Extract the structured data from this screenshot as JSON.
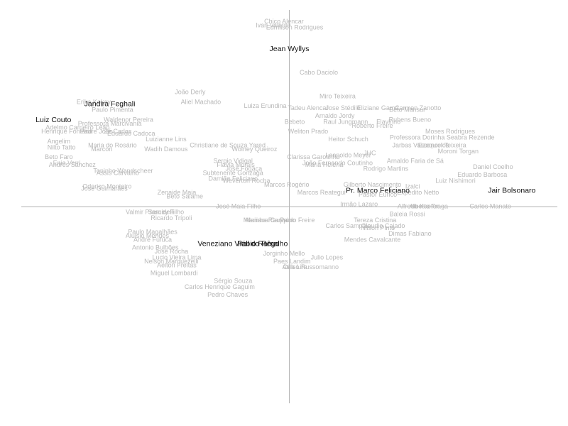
{
  "chart_data": {
    "type": "scatter",
    "title": "",
    "xlabel": "",
    "ylabel": "",
    "xlim": [
      -1.0,
      1.0
    ],
    "ylim": [
      -1.0,
      1.0
    ],
    "grid": false,
    "legend": "none",
    "colors": {
      "highlight": "#111111",
      "point_label": "#b8b8b8",
      "axis": "#b5b5b5"
    },
    "highlighted": [
      {
        "label": "Jean Wyllys",
        "x": 0.0,
        "y": 0.8
      },
      {
        "label": "Jandira Feghali",
        "x": -0.67,
        "y": 0.52
      },
      {
        "label": "Luiz Couto",
        "x": -0.88,
        "y": 0.44
      },
      {
        "label": "Pr. Marco Feliciano",
        "x": 0.33,
        "y": 0.08
      },
      {
        "label": "Jair Bolsonaro",
        "x": 0.83,
        "y": 0.08
      },
      {
        "label": "Veneziano Vital do Rêgo",
        "x": -0.19,
        "y": -0.19
      },
      {
        "label": "Fábio Ramalho",
        "x": -0.1,
        "y": -0.19
      }
    ],
    "points": [
      {
        "label": "Chico Alencar",
        "x": -0.02,
        "y": 0.94
      },
      {
        "label": "Ivan Valente",
        "x": -0.06,
        "y": 0.92
      },
      {
        "label": "Edmilson Rodrigues",
        "x": 0.02,
        "y": 0.91
      },
      {
        "label": "Cabo Daciolo",
        "x": 0.11,
        "y": 0.68
      },
      {
        "label": "João Derly",
        "x": -0.37,
        "y": 0.58
      },
      {
        "label": "Aliel Machado",
        "x": -0.33,
        "y": 0.53
      },
      {
        "label": "Miro Teixeira",
        "x": 0.18,
        "y": 0.56
      },
      {
        "label": "Luiza Erundina",
        "x": -0.09,
        "y": 0.51
      },
      {
        "label": "Tadeu Alencar",
        "x": 0.07,
        "y": 0.5
      },
      {
        "label": "Jose Stédile",
        "x": 0.2,
        "y": 0.5
      },
      {
        "label": "Eliziane Gama",
        "x": 0.33,
        "y": 0.5
      },
      {
        "label": "Carmen Zanotto",
        "x": 0.48,
        "y": 0.5
      },
      {
        "label": "Arnaldo Jordy",
        "x": 0.17,
        "y": 0.46
      },
      {
        "label": "Raul Jungmann",
        "x": 0.21,
        "y": 0.43
      },
      {
        "label": "Roberto Freire",
        "x": 0.31,
        "y": 0.41
      },
      {
        "label": "Beto Mansur",
        "x": 0.44,
        "y": 0.49
      },
      {
        "label": "Rubens Bueno",
        "x": 0.45,
        "y": 0.44
      },
      {
        "label": "Flavinho",
        "x": 0.37,
        "y": 0.43
      },
      {
        "label": "Bebeto",
        "x": 0.02,
        "y": 0.43
      },
      {
        "label": "Weliton Prado",
        "x": 0.07,
        "y": 0.38
      },
      {
        "label": "Heitor Schuch",
        "x": 0.22,
        "y": 0.34
      },
      {
        "label": "Waldenor Pereira",
        "x": -0.6,
        "y": 0.44
      },
      {
        "label": "Erika Kokay",
        "x": -0.73,
        "y": 0.53
      },
      {
        "label": "Paulo Pimenta",
        "x": -0.66,
        "y": 0.49
      },
      {
        "label": "Adelmo Carneiro Leão",
        "x": -0.79,
        "y": 0.4
      },
      {
        "label": "Henrique Fontana",
        "x": -0.83,
        "y": 0.38
      },
      {
        "label": "Padre João",
        "x": -0.72,
        "y": 0.38
      },
      {
        "label": "Zé Carlos",
        "x": -0.64,
        "y": 0.38
      },
      {
        "label": "Professora Marcivania",
        "x": -0.67,
        "y": 0.42
      },
      {
        "label": "Eduardo Cadoca",
        "x": -0.59,
        "y": 0.37
      },
      {
        "label": "Luizianne Lins",
        "x": -0.46,
        "y": 0.34
      },
      {
        "label": "Christiane de Souza Yared",
        "x": -0.23,
        "y": 0.31
      },
      {
        "label": "Wadih Damous",
        "x": -0.46,
        "y": 0.29
      },
      {
        "label": "Wolney Queiroz",
        "x": -0.13,
        "y": 0.29
      },
      {
        "label": "Sergio Vidigal",
        "x": -0.21,
        "y": 0.23
      },
      {
        "label": "Flávia Morais",
        "x": -0.2,
        "y": 0.21
      },
      {
        "label": "José Fogaça",
        "x": -0.17,
        "y": 0.19
      },
      {
        "label": "Subtenente Gonzaga",
        "x": -0.21,
        "y": 0.17
      },
      {
        "label": "Damião Feliciano",
        "x": -0.21,
        "y": 0.14
      },
      {
        "label": "Weverton Rocha",
        "x": -0.16,
        "y": 0.13
      },
      {
        "label": "Leopoldo Meyer",
        "x": 0.22,
        "y": 0.26
      },
      {
        "label": "Clarissa Garotinho",
        "x": 0.09,
        "y": 0.25
      },
      {
        "label": "João Fernando Coutinho",
        "x": 0.18,
        "y": 0.22
      },
      {
        "label": "JHC",
        "x": 0.3,
        "y": 0.27
      },
      {
        "label": "Arnaldo Faria de Sá",
        "x": 0.47,
        "y": 0.23
      },
      {
        "label": "Maria Helena",
        "x": 0.13,
        "y": 0.21
      },
      {
        "label": "Rodrigo Martins",
        "x": 0.36,
        "y": 0.19
      },
      {
        "label": "Professora Dorinha Seabra Rezende",
        "x": 0.57,
        "y": 0.35
      },
      {
        "label": "Moses Rodrigues",
        "x": 0.6,
        "y": 0.38
      },
      {
        "label": "Jarbas Vasconcelos",
        "x": 0.49,
        "y": 0.31
      },
      {
        "label": "Moroni Torgan",
        "x": 0.63,
        "y": 0.28
      },
      {
        "label": "Ezequiel Teixeira",
        "x": 0.57,
        "y": 0.31
      },
      {
        "label": "Daniel Coelho",
        "x": 0.76,
        "y": 0.2
      },
      {
        "label": "Eduardo Barbosa",
        "x": 0.72,
        "y": 0.16
      },
      {
        "label": "Luiz Nishimori",
        "x": 0.62,
        "y": 0.13
      },
      {
        "label": "Marcos Rogério",
        "x": -0.01,
        "y": 0.11
      },
      {
        "label": "Expedito Netto",
        "x": 0.48,
        "y": 0.07
      },
      {
        "label": "Izalci",
        "x": 0.46,
        "y": 0.1
      },
      {
        "label": "Marcos Reategui",
        "x": 0.12,
        "y": 0.07
      },
      {
        "label": "Gilberto Nascimento",
        "x": 0.31,
        "y": 0.11
      },
      {
        "label": "Pastor Eurico",
        "x": 0.33,
        "y": 0.06
      },
      {
        "label": "Irmão Lazaro",
        "x": 0.26,
        "y": 0.01
      },
      {
        "label": "Alfredo Kaefer",
        "x": 0.48,
        "y": 0.0
      },
      {
        "label": "Carlos Manato",
        "x": 0.75,
        "y": 0.0
      },
      {
        "label": "Beto Salame",
        "x": -0.39,
        "y": 0.05
      },
      {
        "label": "Zenaide Maia",
        "x": -0.42,
        "y": 0.07
      },
      {
        "label": "José Guimarães",
        "x": -0.69,
        "y": 0.09
      },
      {
        "label": "Odorico Monteiro",
        "x": -0.68,
        "y": 0.1
      },
      {
        "label": "Toninho Wandscheer",
        "x": -0.62,
        "y": 0.18
      },
      {
        "label": "Maria do Rosário",
        "x": -0.66,
        "y": 0.31
      },
      {
        "label": "Marcon",
        "x": -0.7,
        "y": 0.29
      },
      {
        "label": "Beto Faro",
        "x": -0.86,
        "y": 0.25
      },
      {
        "label": "Nilto Tatto",
        "x": -0.85,
        "y": 0.3
      },
      {
        "label": "Angelim",
        "x": -0.86,
        "y": 0.33
      },
      {
        "label": "Andrés Sanchez",
        "x": -0.81,
        "y": 0.21
      },
      {
        "label": "Enio Verri",
        "x": -0.83,
        "y": 0.22
      },
      {
        "label": "Assis Carvalho",
        "x": -0.64,
        "y": 0.17
      },
      {
        "label": "José Maia Filho",
        "x": -0.19,
        "y": 0.0
      },
      {
        "label": "Valmir Prascidelli",
        "x": -0.52,
        "y": -0.03
      },
      {
        "label": "Sarney Filho",
        "x": -0.46,
        "y": -0.03
      },
      {
        "label": "Ricardo Trípoli",
        "x": -0.44,
        "y": -0.06
      },
      {
        "label": "Paulo Magalhães",
        "x": -0.51,
        "y": -0.13
      },
      {
        "label": "Aluisio Mendes",
        "x": -0.53,
        "y": -0.15
      },
      {
        "label": "Andre Fufuca",
        "x": -0.51,
        "y": -0.17
      },
      {
        "label": "Antonio Bulhões",
        "x": -0.5,
        "y": -0.21
      },
      {
        "label": "José Rocha",
        "x": -0.44,
        "y": -0.23
      },
      {
        "label": "Lucio Vieira Lima",
        "x": -0.42,
        "y": -0.26
      },
      {
        "label": "Nelson Marquezelli",
        "x": -0.44,
        "y": -0.28
      },
      {
        "label": "Aelton Freitas",
        "x": -0.42,
        "y": -0.3
      },
      {
        "label": "Miguel Lombardi",
        "x": -0.43,
        "y": -0.34
      },
      {
        "label": "Carlos Henrique Gaguim",
        "x": -0.26,
        "y": -0.41
      },
      {
        "label": "Pedro Chaves",
        "x": -0.23,
        "y": -0.45
      },
      {
        "label": "Sérgio Souza",
        "x": -0.21,
        "y": -0.38
      },
      {
        "label": "Mariana Carvalho",
        "x": -0.07,
        "y": -0.07
      },
      {
        "label": "Marinha Raupp",
        "x": -0.09,
        "y": -0.07
      },
      {
        "label": "Paulo Freire",
        "x": 0.03,
        "y": -0.07
      },
      {
        "label": "Jorginho Mello",
        "x": -0.02,
        "y": -0.24
      },
      {
        "label": "Julio Lopes",
        "x": 0.14,
        "y": -0.26
      },
      {
        "label": "Paes Landim",
        "x": 0.01,
        "y": -0.28
      },
      {
        "label": "Celso Russomanno",
        "x": 0.08,
        "y": -0.31
      },
      {
        "label": "Átila Lira",
        "x": 0.02,
        "y": -0.31
      },
      {
        "label": "Carlos Sampaio",
        "x": 0.22,
        "y": -0.1
      },
      {
        "label": "Dimas Fabiano",
        "x": 0.45,
        "y": -0.14
      },
      {
        "label": "Mendes Cavalcante",
        "x": 0.31,
        "y": -0.17
      },
      {
        "label": "Nilson Pinto",
        "x": 0.33,
        "y": -0.11
      },
      {
        "label": "Tereza Cristina",
        "x": 0.32,
        "y": -0.07
      },
      {
        "label": "Claudio Cajado",
        "x": 0.35,
        "y": -0.1
      },
      {
        "label": "Baleia Rossi",
        "x": 0.44,
        "y": -0.04
      },
      {
        "label": "Alberto Fraga",
        "x": 0.52,
        "y": 0.0
      }
    ]
  }
}
